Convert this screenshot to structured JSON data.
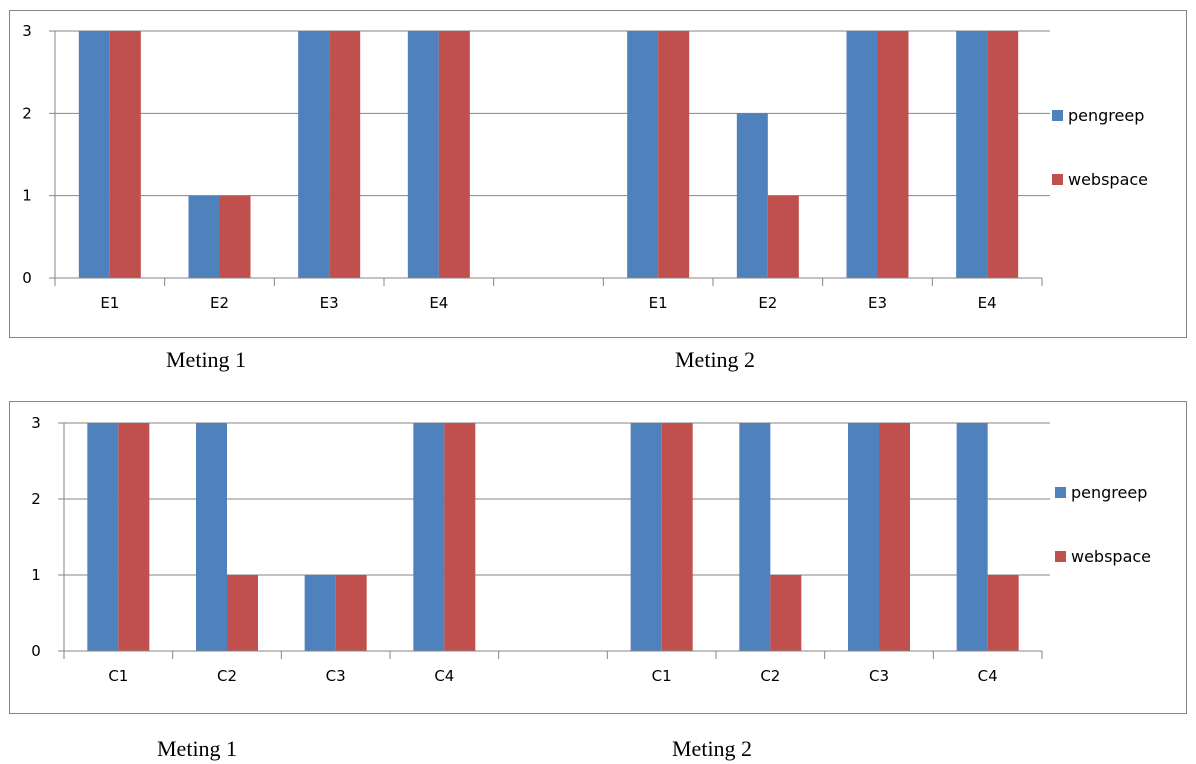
{
  "colors": {
    "pengreep": "#4F81BD",
    "webspace": "#C0504D",
    "axis": "#868686"
  },
  "captions": {
    "top": [
      "Meting 1",
      "Meting 2"
    ],
    "bottom": [
      "Meting 1",
      "Meting 2"
    ]
  },
  "chart_data": [
    {
      "type": "bar",
      "categories": [
        "E1",
        "E2",
        "E3",
        "E4",
        "",
        "E1",
        "E2",
        "E3",
        "E4"
      ],
      "series": [
        {
          "name": "pengreep",
          "values": [
            3,
            1,
            3,
            3,
            null,
            3,
            2,
            3,
            3
          ]
        },
        {
          "name": "webspace",
          "values": [
            3,
            1,
            3,
            3,
            null,
            3,
            1,
            3,
            3
          ]
        }
      ],
      "yticks": [
        "0",
        "1",
        "2",
        "3"
      ],
      "ylim": [
        0,
        3
      ],
      "grid": true,
      "legend": "right"
    },
    {
      "type": "bar",
      "categories": [
        "C1",
        "C2",
        "C3",
        "C4",
        "",
        "C1",
        "C2",
        "C3",
        "C4"
      ],
      "series": [
        {
          "name": "pengreep",
          "values": [
            3,
            3,
            1,
            3,
            null,
            3,
            3,
            3,
            3
          ]
        },
        {
          "name": "webspace",
          "values": [
            3,
            1,
            1,
            3,
            null,
            3,
            1,
            3,
            1
          ]
        }
      ],
      "yticks": [
        "0",
        "1",
        "2",
        "3"
      ],
      "ylim": [
        0,
        3
      ],
      "grid": true,
      "legend": "right"
    }
  ]
}
